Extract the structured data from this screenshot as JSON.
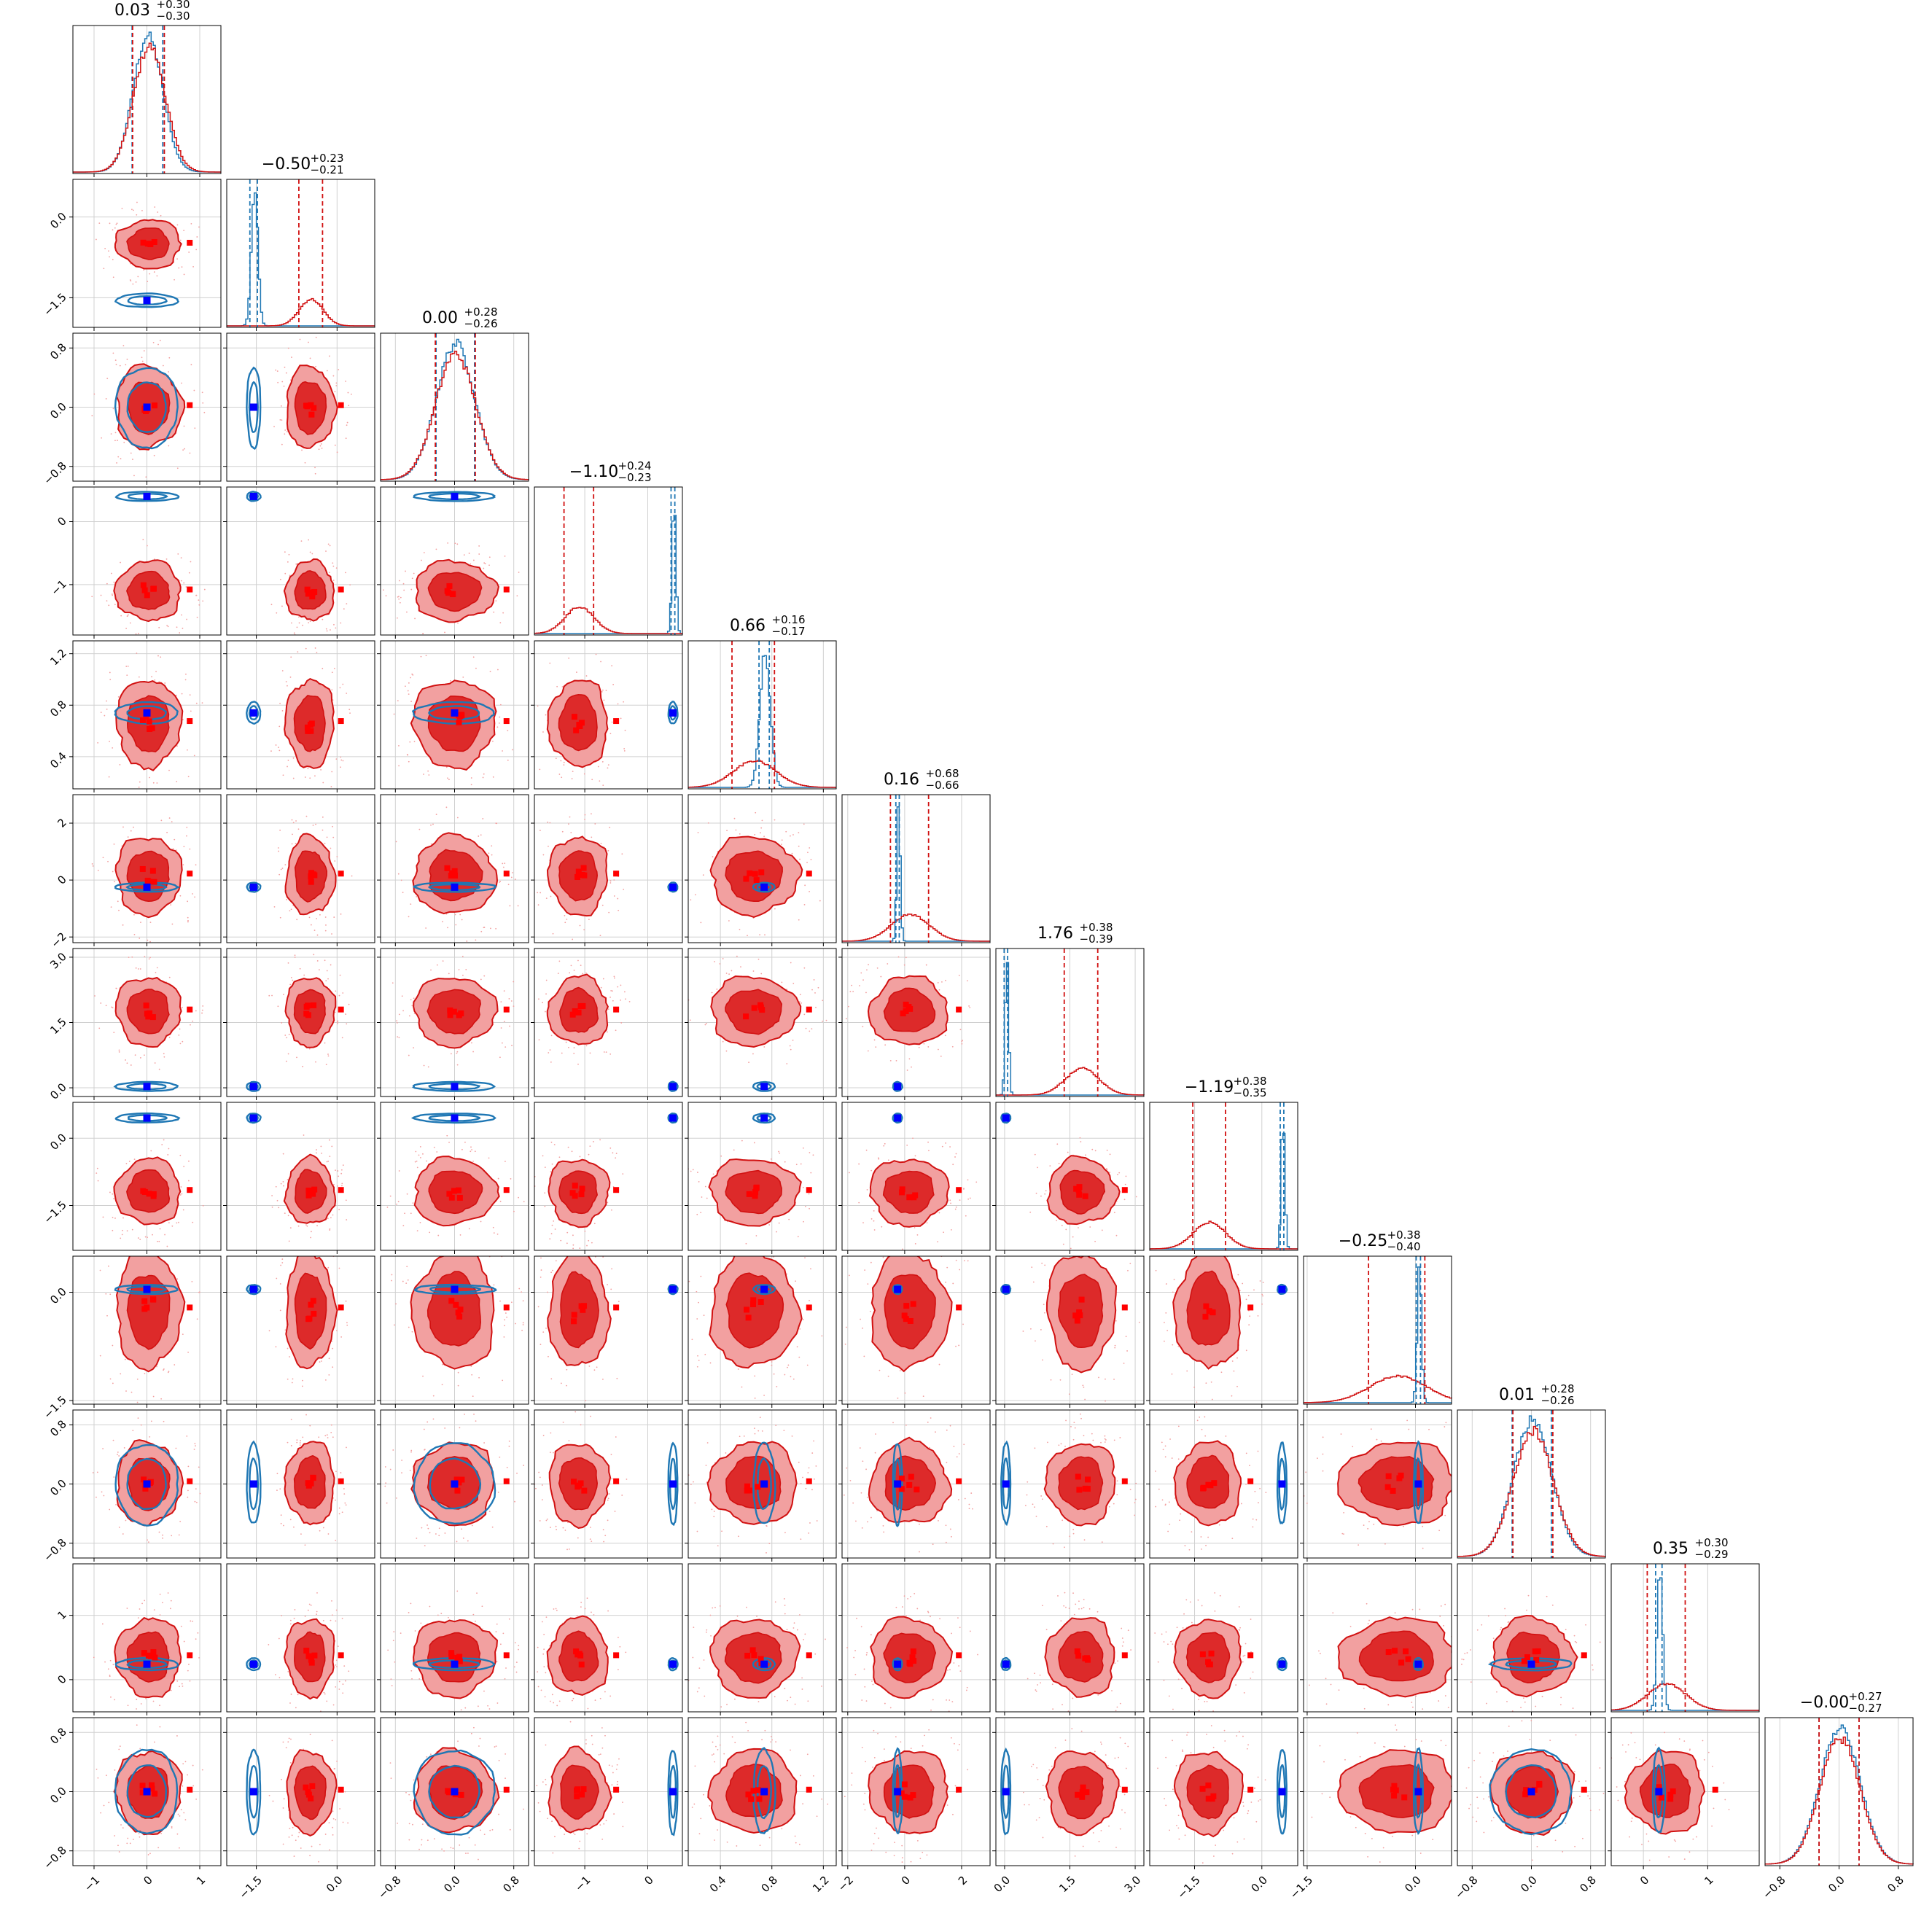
{
  "colors": {
    "red_fill_outer": "#f2a0a0",
    "red_fill_inner": "#dd2a2a",
    "red_line": "#d11111",
    "blue_line": "#1f77b4",
    "blue_marker": "#0000ff",
    "red_marker": "#ff0000",
    "grid": "#d0d0d0"
  },
  "chart_data": {
    "type": "corner",
    "n_params": 12,
    "grid": true,
    "parameters": [
      {
        "title_value": "0.03",
        "title_plus": "+0.30",
        "title_minus": "−0.30",
        "range": [
          -1.4,
          1.4
        ],
        "ticks": [
          -1,
          0,
          1
        ],
        "tick_labels": [
          "−1",
          "0",
          "1"
        ],
        "red_center": 0.03,
        "red_sigma": 0.3,
        "blue_center": 0.0,
        "blue_sigma": 0.28,
        "red_quantiles": [
          -0.27,
          0.33
        ],
        "blue_quantiles": [
          -0.28,
          0.3
        ],
        "truth": 0.0
      },
      {
        "title_value": "−0.50",
        "title_plus": "+0.23",
        "title_minus": "−0.21",
        "range": [
          -2.05,
          0.7
        ],
        "ticks": [
          -1.5,
          0.0
        ],
        "tick_labels": [
          "−1.5",
          "0.0"
        ],
        "red_center": -0.5,
        "red_sigma": 0.22,
        "blue_center": -1.55,
        "blue_sigma": 0.06,
        "red_quantiles": [
          -0.71,
          -0.27
        ],
        "blue_quantiles": [
          -1.62,
          -1.48
        ],
        "truth": -1.55
      },
      {
        "title_value": "0.00",
        "title_plus": "+0.28",
        "title_minus": "−0.26",
        "range": [
          -1.0,
          1.0
        ],
        "ticks": [
          -0.8,
          0.0,
          0.8
        ],
        "tick_labels": [
          "−0.8",
          "0.0",
          "0.8"
        ],
        "red_center": 0.0,
        "red_sigma": 0.27,
        "blue_center": 0.0,
        "blue_sigma": 0.26,
        "red_quantiles": [
          -0.26,
          0.28
        ],
        "blue_quantiles": [
          -0.25,
          0.27
        ],
        "truth": 0.0
      },
      {
        "title_value": "−1.10",
        "title_plus": "+0.24",
        "title_minus": "−0.23",
        "range": [
          -1.8,
          0.55
        ],
        "ticks": [
          -1,
          0
        ],
        "tick_labels": [
          "−1",
          "0"
        ],
        "red_center": -1.1,
        "red_sigma": 0.23,
        "blue_center": 0.4,
        "blue_sigma": 0.03,
        "red_quantiles": [
          -1.33,
          -0.86
        ],
        "blue_quantiles": [
          0.37,
          0.43
        ],
        "truth": 0.4
      },
      {
        "title_value": "0.66",
        "title_plus": "+0.16",
        "title_minus": "−0.17",
        "range": [
          0.15,
          1.3
        ],
        "ticks": [
          0.4,
          0.8,
          1.2
        ],
        "tick_labels": [
          "0.4",
          "0.8",
          "1.2"
        ],
        "red_center": 0.66,
        "red_sigma": 0.165,
        "blue_center": 0.74,
        "blue_sigma": 0.04,
        "red_quantiles": [
          0.49,
          0.82
        ],
        "blue_quantiles": [
          0.7,
          0.78
        ],
        "truth": 0.74
      },
      {
        "title_value": "0.16",
        "title_plus": "+0.68",
        "title_minus": "−0.66",
        "range": [
          -2.2,
          3.0
        ],
        "ticks": [
          -2,
          0,
          2
        ],
        "tick_labels": [
          "−2",
          "0",
          "2"
        ],
        "red_center": 0.16,
        "red_sigma": 0.67,
        "blue_center": -0.25,
        "blue_sigma": 0.06,
        "red_quantiles": [
          -0.5,
          0.84
        ],
        "blue_quantiles": [
          -0.31,
          -0.19
        ],
        "truth": -0.25
      },
      {
        "title_value": "1.76",
        "title_plus": "+0.38",
        "title_minus": "−0.39",
        "range": [
          -0.2,
          3.2
        ],
        "ticks": [
          0.0,
          1.5,
          3.0
        ],
        "tick_labels": [
          "0.0",
          "1.5",
          "3.0"
        ],
        "red_center": 1.76,
        "red_sigma": 0.385,
        "blue_center": 0.03,
        "blue_sigma": 0.04,
        "red_quantiles": [
          1.37,
          2.14
        ],
        "blue_quantiles": [
          -0.01,
          0.07
        ],
        "truth": 0.03
      },
      {
        "title_value": "−1.19",
        "title_plus": "+0.38",
        "title_minus": "−0.35",
        "range": [
          -2.5,
          0.8
        ],
        "ticks": [
          -1.5,
          0.0
        ],
        "tick_labels": [
          "−1.5",
          "0.0"
        ],
        "red_center": -1.19,
        "red_sigma": 0.36,
        "blue_center": 0.45,
        "blue_sigma": 0.04,
        "red_quantiles": [
          -1.54,
          -0.81
        ],
        "blue_quantiles": [
          0.41,
          0.49
        ],
        "truth": 0.45
      },
      {
        "title_value": "−0.25",
        "title_plus": "+0.38",
        "title_minus": "−0.40",
        "range": [
          -1.55,
          0.5
        ],
        "ticks": [
          -1.5,
          0.0
        ],
        "tick_labels": [
          "−1.5",
          "0.0"
        ],
        "red_center": -0.25,
        "red_sigma": 0.39,
        "blue_center": 0.04,
        "blue_sigma": 0.03,
        "red_quantiles": [
          -0.65,
          0.13
        ],
        "blue_quantiles": [
          0.01,
          0.07
        ],
        "truth": 0.04
      },
      {
        "title_value": "0.01",
        "title_plus": "+0.28",
        "title_minus": "−0.26",
        "range": [
          -1.0,
          1.0
        ],
        "ticks": [
          -0.8,
          0.0,
          0.8
        ],
        "tick_labels": [
          "−0.8",
          "0.0",
          "0.8"
        ],
        "red_center": 0.01,
        "red_sigma": 0.27,
        "blue_center": 0.0,
        "blue_sigma": 0.26,
        "red_quantiles": [
          -0.25,
          0.29
        ],
        "blue_quantiles": [
          -0.26,
          0.27
        ],
        "truth": 0.0
      },
      {
        "title_value": "0.35",
        "title_plus": "+0.30",
        "title_minus": "−0.29",
        "range": [
          -0.5,
          1.8
        ],
        "ticks": [
          0,
          1
        ],
        "tick_labels": [
          "0",
          "1"
        ],
        "red_center": 0.35,
        "red_sigma": 0.295,
        "blue_center": 0.24,
        "blue_sigma": 0.045,
        "red_quantiles": [
          0.06,
          0.65
        ],
        "blue_quantiles": [
          0.19,
          0.29
        ],
        "truth": 0.24
      },
      {
        "title_value": "−0.00",
        "title_plus": "+0.27",
        "title_minus": "−0.27",
        "range": [
          -1.0,
          1.0
        ],
        "ticks": [
          -0.8,
          0.0,
          0.8
        ],
        "tick_labels": [
          "−0.8",
          "0.0",
          "0.8"
        ],
        "red_center": 0.0,
        "red_sigma": 0.27,
        "blue_center": 0.0,
        "blue_sigma": 0.27,
        "red_quantiles": [
          -0.27,
          0.27
        ],
        "blue_quantiles": [
          -0.27,
          0.27
        ],
        "truth": 0.0
      }
    ]
  }
}
